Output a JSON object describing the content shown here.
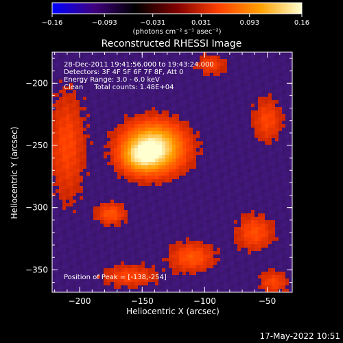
{
  "colorbar": {
    "colormap": [
      "#0000ff",
      "#400080",
      "#000000",
      "#800000",
      "#ff4000",
      "#ffa000",
      "#ffffd0"
    ],
    "range": [
      -0.16,
      0.16
    ],
    "tick_labels": [
      "-0.16",
      "-0.093",
      "-0.031",
      "0.031",
      "0.093",
      "0.16"
    ],
    "unit_label": "(photons cm⁻² s⁻¹ asec⁻²)"
  },
  "chart_data": {
    "type": "heatmap",
    "title": "Reconstructed RHESSI Image",
    "xlabel": "Heliocentric X (arcsec)",
    "ylabel": "Heliocentric Y (arcsec)",
    "xlim": [
      -222,
      -30
    ],
    "ylim": [
      -368,
      -175
    ],
    "x_ticks": [
      -200,
      -150,
      -100,
      -50
    ],
    "y_ticks": [
      -200,
      -250,
      -300,
      -350
    ],
    "x_tick_labels": [
      "−200",
      "−150",
      "−100",
      "−50"
    ],
    "y_tick_labels": [
      "−200",
      "−250",
      "−300",
      "−350"
    ],
    "background_color": "#4a1a8a",
    "sources": [
      {
        "x": -141,
        "y": -252,
        "sigma_x": 16,
        "sigma_y": 13,
        "amplitude": 0.16
      },
      {
        "x": -152,
        "y": -260,
        "sigma_x": 10,
        "sigma_y": 8,
        "amplitude": 0.06
      },
      {
        "x": -175,
        "y": -305,
        "sigma_x": 8,
        "sigma_y": 6,
        "amplitude": 0.05
      },
      {
        "x": -110,
        "y": -340,
        "sigma_x": 12,
        "sigma_y": 8,
        "amplitude": 0.05
      },
      {
        "x": -60,
        "y": -320,
        "sigma_x": 10,
        "sigma_y": 10,
        "amplitude": 0.045
      },
      {
        "x": -50,
        "y": -230,
        "sigma_x": 8,
        "sigma_y": 12,
        "amplitude": 0.04
      },
      {
        "x": -210,
        "y": -250,
        "sigma_x": 10,
        "sigma_y": 30,
        "amplitude": 0.04
      },
      {
        "x": -95,
        "y": -185,
        "sigma_x": 8,
        "sigma_y": 6,
        "amplitude": 0.035
      },
      {
        "x": -160,
        "y": -355,
        "sigma_x": 15,
        "sigma_y": 6,
        "amplitude": 0.04
      },
      {
        "x": -45,
        "y": -360,
        "sigma_x": 8,
        "sigma_y": 6,
        "amplitude": 0.04
      }
    ],
    "annotations": [
      "28-Dec-2011 19:41:56.000 to 19:43:24.000",
      "Detectors: 3F 4F 5F 6F 7F 8F, Att 0",
      "Energy Range: 3.0 - 6.0 keV",
      "Clean     Total counts: 1.48E+04"
    ],
    "peak_label": "Position of Peak = [-138,-254]"
  },
  "footer": {
    "date": "17-May-2022 10:51"
  }
}
